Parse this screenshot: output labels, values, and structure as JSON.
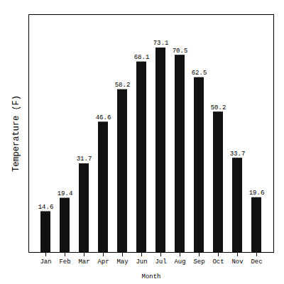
{
  "chart_data": {
    "type": "bar",
    "categories": [
      "Jan",
      "Feb",
      "Mar",
      "Apr",
      "May",
      "Jun",
      "Jul",
      "Aug",
      "Sep",
      "Oct",
      "Nov",
      "Dec"
    ],
    "values": [
      14.6,
      19.4,
      31.7,
      46.6,
      58.2,
      68.1,
      73.1,
      70.5,
      62.5,
      50.2,
      33.7,
      19.6
    ],
    "color": "#111111",
    "xlabel": "Month",
    "ylabel": "Temperature (F)",
    "ylim": [
      0,
      85
    ],
    "data_labels": true,
    "tick_labels": "x"
  }
}
